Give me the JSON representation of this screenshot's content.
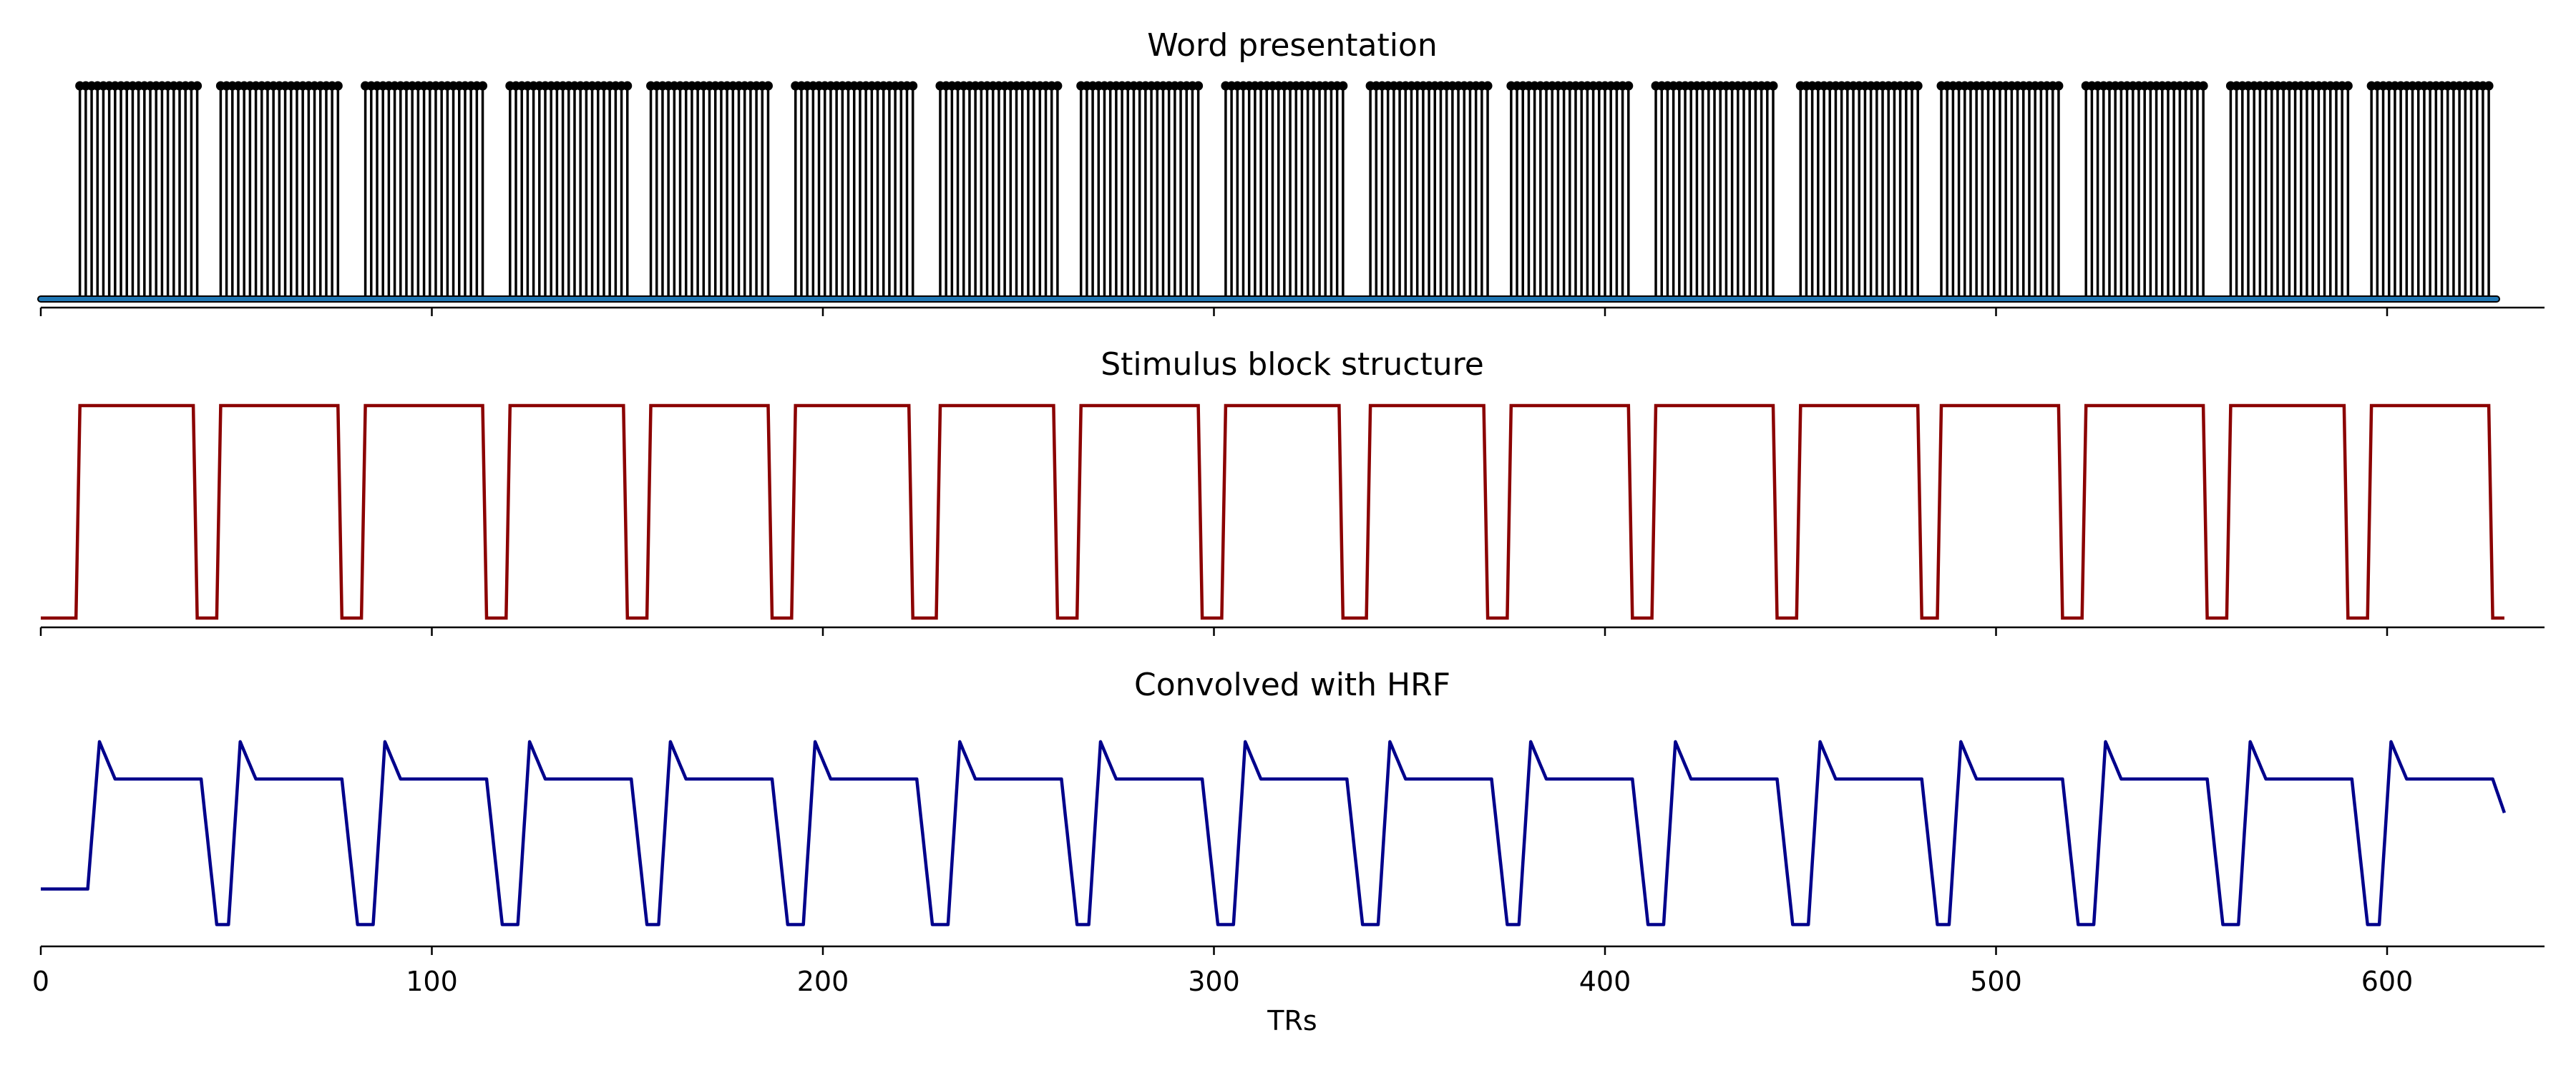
{
  "figure": {
    "xlabel": "TRs",
    "x_ticks": [
      0,
      100,
      200,
      300,
      400,
      500,
      600
    ],
    "xlim": [
      0,
      640
    ]
  },
  "chart_data": [
    {
      "type": "stem",
      "title": "Word presentation",
      "ylim": [
        0,
        1
      ],
      "baseline": {
        "x_start": 0,
        "x_end": 628,
        "value": 0
      },
      "stem_height": 1,
      "blocks": [
        {
          "start": 10,
          "end": 40
        },
        {
          "start": 46,
          "end": 76
        },
        {
          "start": 83,
          "end": 113
        },
        {
          "start": 120,
          "end": 150
        },
        {
          "start": 156,
          "end": 186
        },
        {
          "start": 193,
          "end": 223
        },
        {
          "start": 230,
          "end": 260
        },
        {
          "start": 266,
          "end": 296
        },
        {
          "start": 303,
          "end": 333
        },
        {
          "start": 340,
          "end": 370
        },
        {
          "start": 376,
          "end": 406
        },
        {
          "start": 413,
          "end": 443
        },
        {
          "start": 450,
          "end": 480
        },
        {
          "start": 486,
          "end": 516
        },
        {
          "start": 523,
          "end": 553
        },
        {
          "start": 560,
          "end": 590
        },
        {
          "start": 596,
          "end": 626
        }
      ],
      "colors": {
        "stem": "#000000",
        "baseline": "#1f77b4"
      }
    },
    {
      "type": "line",
      "title": "Stimulus block structure",
      "ylim": [
        0,
        1
      ],
      "x": [
        0,
        9,
        10,
        39,
        40,
        45,
        46,
        76,
        77,
        82,
        83,
        113,
        114,
        119,
        120,
        149,
        150,
        155,
        156,
        186,
        187,
        192,
        193,
        222,
        223,
        229,
        230,
        259,
        260,
        265,
        266,
        296,
        297,
        302,
        303,
        332,
        333,
        339,
        340,
        369,
        370,
        375,
        376,
        406,
        407,
        412,
        413,
        443,
        444,
        449,
        450,
        480,
        481,
        485,
        486,
        516,
        517,
        522,
        523,
        553,
        554,
        559,
        560,
        589,
        590,
        595,
        596,
        626,
        627,
        630
      ],
      "y": [
        0,
        0,
        1,
        1,
        0,
        0,
        1,
        1,
        0,
        0,
        1,
        1,
        0,
        0,
        1,
        1,
        0,
        0,
        1,
        1,
        0,
        0,
        1,
        1,
        0,
        0,
        1,
        1,
        0,
        0,
        1,
        1,
        0,
        0,
        1,
        1,
        0,
        0,
        1,
        1,
        0,
        0,
        1,
        1,
        0,
        0,
        1,
        1,
        0,
        0,
        1,
        1,
        0,
        0,
        1,
        1,
        0,
        0,
        1,
        1,
        0,
        0,
        1,
        1,
        0,
        0,
        1,
        1,
        0,
        0
      ],
      "colors": {
        "line": "#8b0000"
      }
    },
    {
      "type": "line",
      "title": "Convolved with HRF",
      "ylim": [
        -0.12,
        1.08
      ],
      "model": {
        "kind": "hrf-convolved-blocks",
        "on_blocks": [
          {
            "start": 10,
            "end": 40
          },
          {
            "start": 46,
            "end": 76
          },
          {
            "start": 83,
            "end": 113
          },
          {
            "start": 120,
            "end": 150
          },
          {
            "start": 156,
            "end": 186
          },
          {
            "start": 193,
            "end": 223
          },
          {
            "start": 230,
            "end": 260
          },
          {
            "start": 266,
            "end": 296
          },
          {
            "start": 303,
            "end": 333
          },
          {
            "start": 340,
            "end": 370
          },
          {
            "start": 376,
            "end": 406
          },
          {
            "start": 413,
            "end": 443
          },
          {
            "start": 450,
            "end": 480
          },
          {
            "start": 486,
            "end": 516
          },
          {
            "start": 523,
            "end": 553
          },
          {
            "start": 560,
            "end": 590
          },
          {
            "start": 596,
            "end": 626
          }
        ],
        "x_range": [
          0,
          630
        ],
        "initial_level": 0.13,
        "plateau_level": 0.78,
        "peak_level": 1.0,
        "trough_level": -0.08
      },
      "colors": {
        "line": "#00008b"
      }
    }
  ]
}
